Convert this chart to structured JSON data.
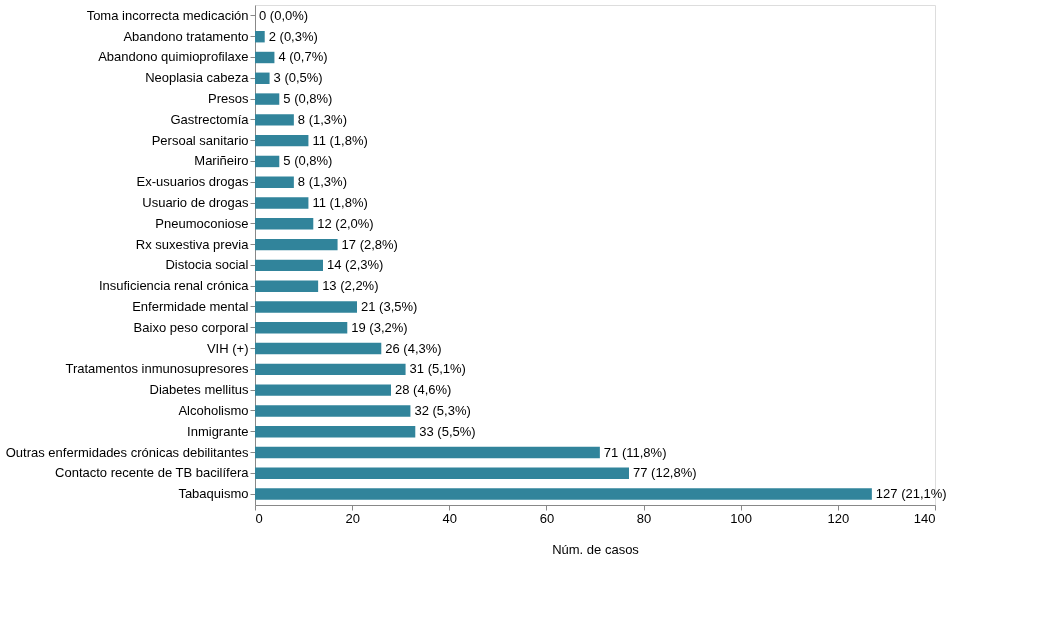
{
  "chart_data": {
    "type": "bar",
    "orientation": "horizontal",
    "xlabel": "Núm. de casos",
    "categories": [
      "Toma incorrecta medicación",
      "Abandono tratamento",
      "Abandono quimioprofilaxe",
      "Neoplasia cabeza",
      "Presos",
      "Gastrectomía",
      "Persoal sanitario",
      "Mariñeiro",
      "Ex-usuarios drogas",
      "Usuario de drogas",
      "Pneumoconiose",
      "Rx suxestiva previa",
      "Distocia social",
      "Insuficiencia renal crónica",
      "Enfermidade mental",
      "Baixo peso corporal",
      "VIH (+)",
      "Tratamentos inmunosupresores",
      "Diabetes mellitus",
      "Alcoholismo",
      "Inmigrante",
      "Outras enfermidades crónicas debilitantes",
      "Contacto recente de TB bacilífera",
      "Tabaquismo"
    ],
    "values": [
      0,
      2,
      4,
      3,
      5,
      8,
      11,
      5,
      8,
      11,
      12,
      17,
      14,
      13,
      21,
      19,
      26,
      31,
      28,
      32,
      33,
      71,
      77,
      127
    ],
    "value_labels": [
      "0 (0,0%)",
      "2 (0,3%)",
      "4 (0,7%)",
      "3 (0,5%)",
      "5 (0,8%)",
      "8 (1,3%)",
      "11 (1,8%)",
      "5 (0,8%)",
      "8 (1,3%)",
      "11 (1,8%)",
      "12 (2,0%)",
      "17 (2,8%)",
      "14 (2,3%)",
      "13 (2,2%)",
      "21 (3,5%)",
      "19 (3,2%)",
      "26 (4,3%)",
      "31 (5,1%)",
      "28 (4,6%)",
      "32 (5,3%)",
      "33 (5,5%)",
      "71 (11,8%)",
      "77 (12,8%)",
      "127 (21,1%)"
    ],
    "color": "#31849b",
    "xlim": [
      0,
      140
    ],
    "xticks": [
      0,
      20,
      40,
      60,
      80,
      100,
      120,
      140
    ],
    "grid": false
  }
}
